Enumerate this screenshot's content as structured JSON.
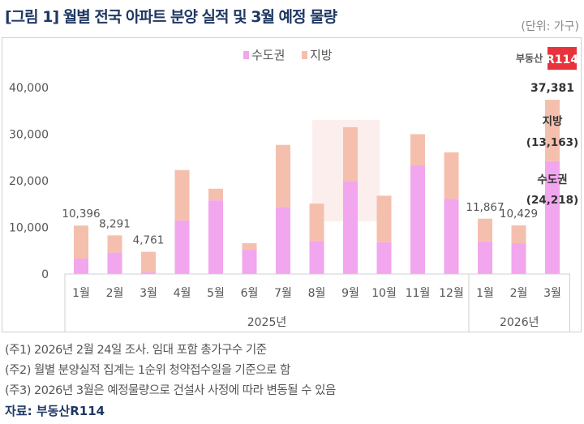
{
  "title": "[그림 1] 월별 전국 아파트 분양 실적 및 3월 예정 물량",
  "unit": "(단위: 가구)",
  "logo": "부동산R114",
  "notes": [
    "(주1) 2026년 2월 24일 조사. 임대 포함 총가구수 기준",
    "(주2) 월별 분양실적 집계는 1순위 청약접수일을 기준으로 함",
    "(주3) 2026년 3월은 예정물량으로 건설사 사정에 따라 변동될 수 있음"
  ],
  "source": "자료: 부동산R114",
  "chart_data": {
    "type": "bar",
    "stacked": true,
    "categories": [
      "1월",
      "2월",
      "3월",
      "4월",
      "5월",
      "6월",
      "7월",
      "8월",
      "9월",
      "10월",
      "11월",
      "12월",
      "1월",
      "2월",
      "3월"
    ],
    "groups": [
      {
        "label": "2025년",
        "count": 12
      },
      {
        "label": "2026년",
        "count": 3
      }
    ],
    "series": [
      {
        "name": "수도권",
        "color": "#f2a6ee",
        "values": [
          3300,
          4600,
          400,
          11500,
          15800,
          5200,
          14400,
          7100,
          19900,
          6800,
          23300,
          16100,
          7000,
          6600,
          24218
        ]
      },
      {
        "name": "지방",
        "color": "#f5bfae",
        "values": [
          7096,
          3691,
          4361,
          10800,
          2500,
          1400,
          13300,
          8000,
          11600,
          10000,
          6700,
          10000,
          4867,
          3829,
          13163
        ]
      }
    ],
    "total_labels": [
      "10,396",
      "8,291",
      "4,761",
      "",
      "",
      "",
      "",
      "",
      "",
      "",
      "",
      "",
      "11,867",
      "10,429",
      "37,381"
    ],
    "last_bar_annotations": {
      "series2_name": "지방",
      "series2_value": "(13,163)",
      "series1_name": "수도권",
      "series1_value": "(24,218)"
    },
    "yticks": [
      "0",
      "10,000",
      "20,000",
      "30,000",
      "40,000"
    ],
    "ylim": [
      0,
      40000
    ],
    "legend": "top-center",
    "grid": false
  }
}
